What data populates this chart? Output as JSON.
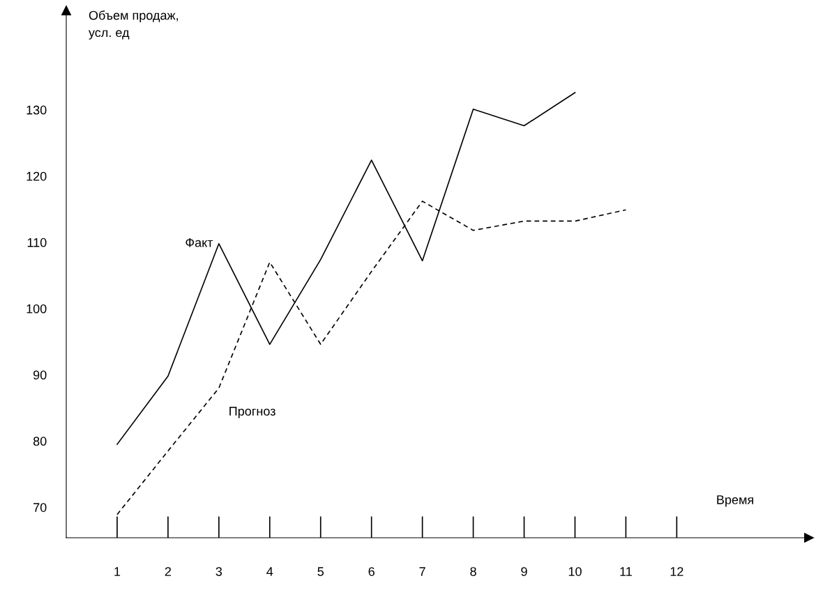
{
  "chart_data": {
    "type": "line",
    "ylabel": "Объем продаж,\nусл. ед",
    "xlabel": "Время",
    "x": [
      1,
      2,
      3,
      4,
      5,
      6,
      7,
      8,
      9,
      10,
      11
    ],
    "series": [
      {
        "name": "Факт",
        "color": "#000000",
        "line_style": "solid",
        "values": [
          79.5,
          89.8,
          109.8,
          94.6,
          107.4,
          122.4,
          107.2,
          130.1,
          127.6,
          132.6,
          null
        ]
      },
      {
        "name": "Прогноз",
        "color": "#000000",
        "line_style": "dashed",
        "values": [
          68.9,
          78.5,
          88.0,
          107.0,
          94.6,
          105.6,
          116.2,
          111.8,
          113.2,
          113.2,
          114.9
        ]
      }
    ],
    "xlim": [
      0,
      14.6
    ],
    "ylim": [
      65.4,
      145
    ],
    "xticks": [
      1,
      2,
      3,
      4,
      5,
      6,
      7,
      8,
      9,
      10,
      11,
      12
    ],
    "yticks": [
      70,
      80,
      90,
      100,
      110,
      120,
      130
    ],
    "grid": false,
    "legend": false,
    "marker": "none"
  }
}
